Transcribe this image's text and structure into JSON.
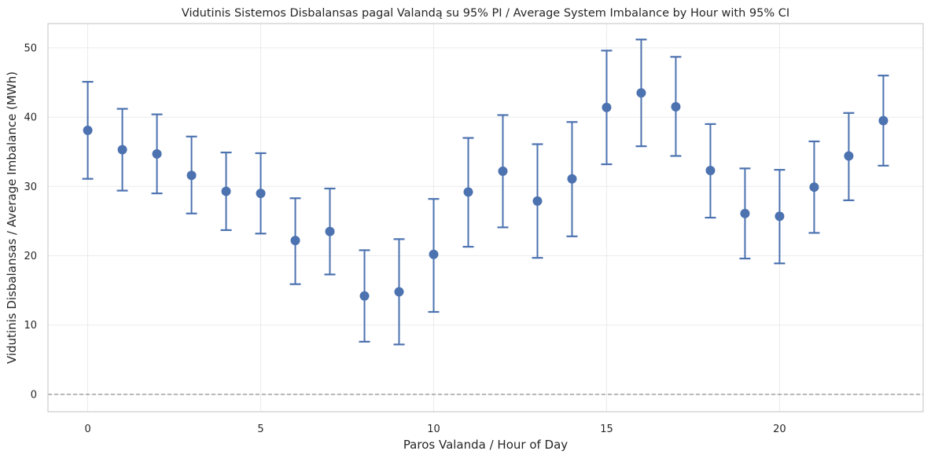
{
  "chart_data": {
    "type": "errorbar",
    "title": "Vidutinis Sistemos Disbalansas pagal Valandą su 95% PI / Average System Imbalance by Hour with 95% CI",
    "xlabel": "Paros Valanda / Hour of Day",
    "ylabel": "Vidutinis Disbalansas / Average Imbalance (MWh)",
    "xlim": [
      -1.15,
      24.15
    ],
    "ylim": [
      -2.5,
      53.5
    ],
    "xticks": [
      0,
      5,
      10,
      15,
      20
    ],
    "yticks": [
      0,
      10,
      20,
      30,
      40,
      50
    ],
    "grid": true,
    "reference_line": {
      "y": 0,
      "style": "dashed",
      "color": "#808080"
    },
    "marker_color": "#4c72b0",
    "x": [
      0,
      1,
      2,
      3,
      4,
      5,
      6,
      7,
      8,
      9,
      10,
      11,
      12,
      13,
      14,
      15,
      16,
      17,
      18,
      19,
      20,
      21,
      22,
      23
    ],
    "mean": [
      38.1,
      35.3,
      34.7,
      31.6,
      29.3,
      29.0,
      22.2,
      23.5,
      14.2,
      14.8,
      20.2,
      29.2,
      32.2,
      27.9,
      31.1,
      41.4,
      43.5,
      41.5,
      32.3,
      26.1,
      25.7,
      29.9,
      34.4,
      39.5
    ],
    "ci_lower": [
      31.1,
      29.4,
      29.0,
      26.1,
      23.7,
      23.2,
      15.9,
      17.3,
      7.6,
      7.2,
      11.9,
      21.3,
      24.1,
      19.7,
      22.8,
      33.2,
      35.8,
      34.4,
      25.5,
      19.6,
      18.9,
      23.3,
      28.0,
      33.0
    ],
    "ci_upper": [
      45.1,
      41.2,
      40.4,
      37.2,
      34.9,
      34.8,
      28.3,
      29.7,
      20.8,
      22.4,
      28.2,
      37.0,
      40.3,
      36.1,
      39.3,
      49.6,
      51.2,
      48.7,
      39.0,
      32.6,
      32.4,
      36.5,
      40.6,
      46.0
    ]
  }
}
